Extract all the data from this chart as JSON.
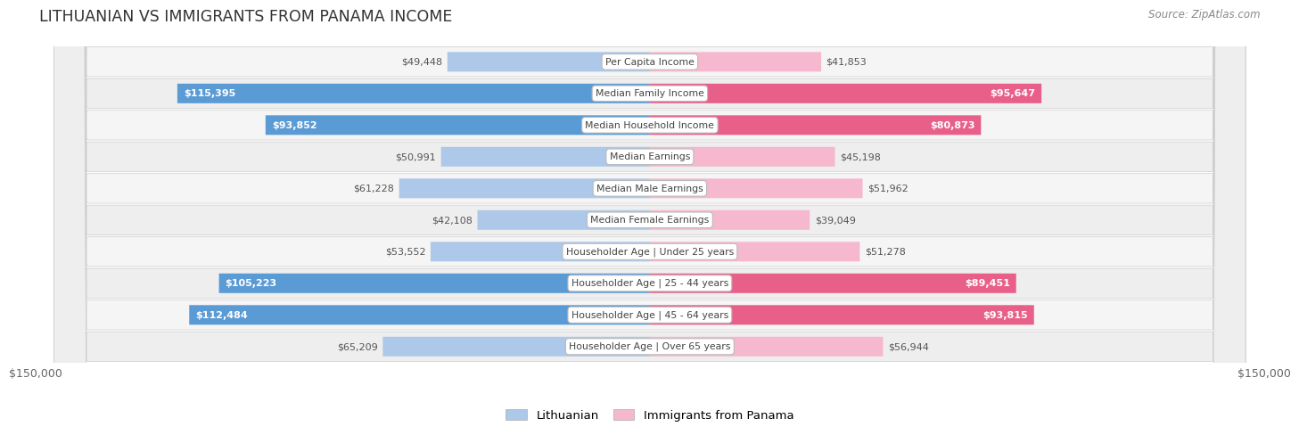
{
  "title": "LITHUANIAN VS IMMIGRANTS FROM PANAMA INCOME",
  "source": "Source: ZipAtlas.com",
  "categories": [
    "Per Capita Income",
    "Median Family Income",
    "Median Household Income",
    "Median Earnings",
    "Median Male Earnings",
    "Median Female Earnings",
    "Householder Age | Under 25 years",
    "Householder Age | 25 - 44 years",
    "Householder Age | 45 - 64 years",
    "Householder Age | Over 65 years"
  ],
  "lithuanian_values": [
    49448,
    115395,
    93852,
    50991,
    61228,
    42108,
    53552,
    105223,
    112484,
    65209
  ],
  "panama_values": [
    41853,
    95647,
    80873,
    45198,
    51962,
    39049,
    51278,
    89451,
    93815,
    56944
  ],
  "lithuanian_labels": [
    "$49,448",
    "$115,395",
    "$93,852",
    "$50,991",
    "$61,228",
    "$42,108",
    "$53,552",
    "$105,223",
    "$112,484",
    "$65,209"
  ],
  "panama_labels": [
    "$41,853",
    "$95,647",
    "$80,873",
    "$45,198",
    "$51,962",
    "$39,049",
    "$51,278",
    "$89,451",
    "$93,815",
    "$56,944"
  ],
  "lith_color_light": "#adc8e8",
  "lith_color_dark": "#5b9bd5",
  "panama_color_light": "#f5b8ce",
  "panama_color_dark": "#e8608a",
  "lith_threshold": 75000,
  "panama_threshold": 75000,
  "max_value": 150000,
  "xlabel_left": "$150,000",
  "xlabel_right": "$150,000",
  "background_color": "#ffffff",
  "row_colors": [
    "#f5f5f5",
    "#eeeeee"
  ],
  "label_inside_color": "#ffffff",
  "label_outside_color": "#555555",
  "legend_lithuanian": "Lithuanian",
  "legend_panama": "Immigrants from Panama"
}
